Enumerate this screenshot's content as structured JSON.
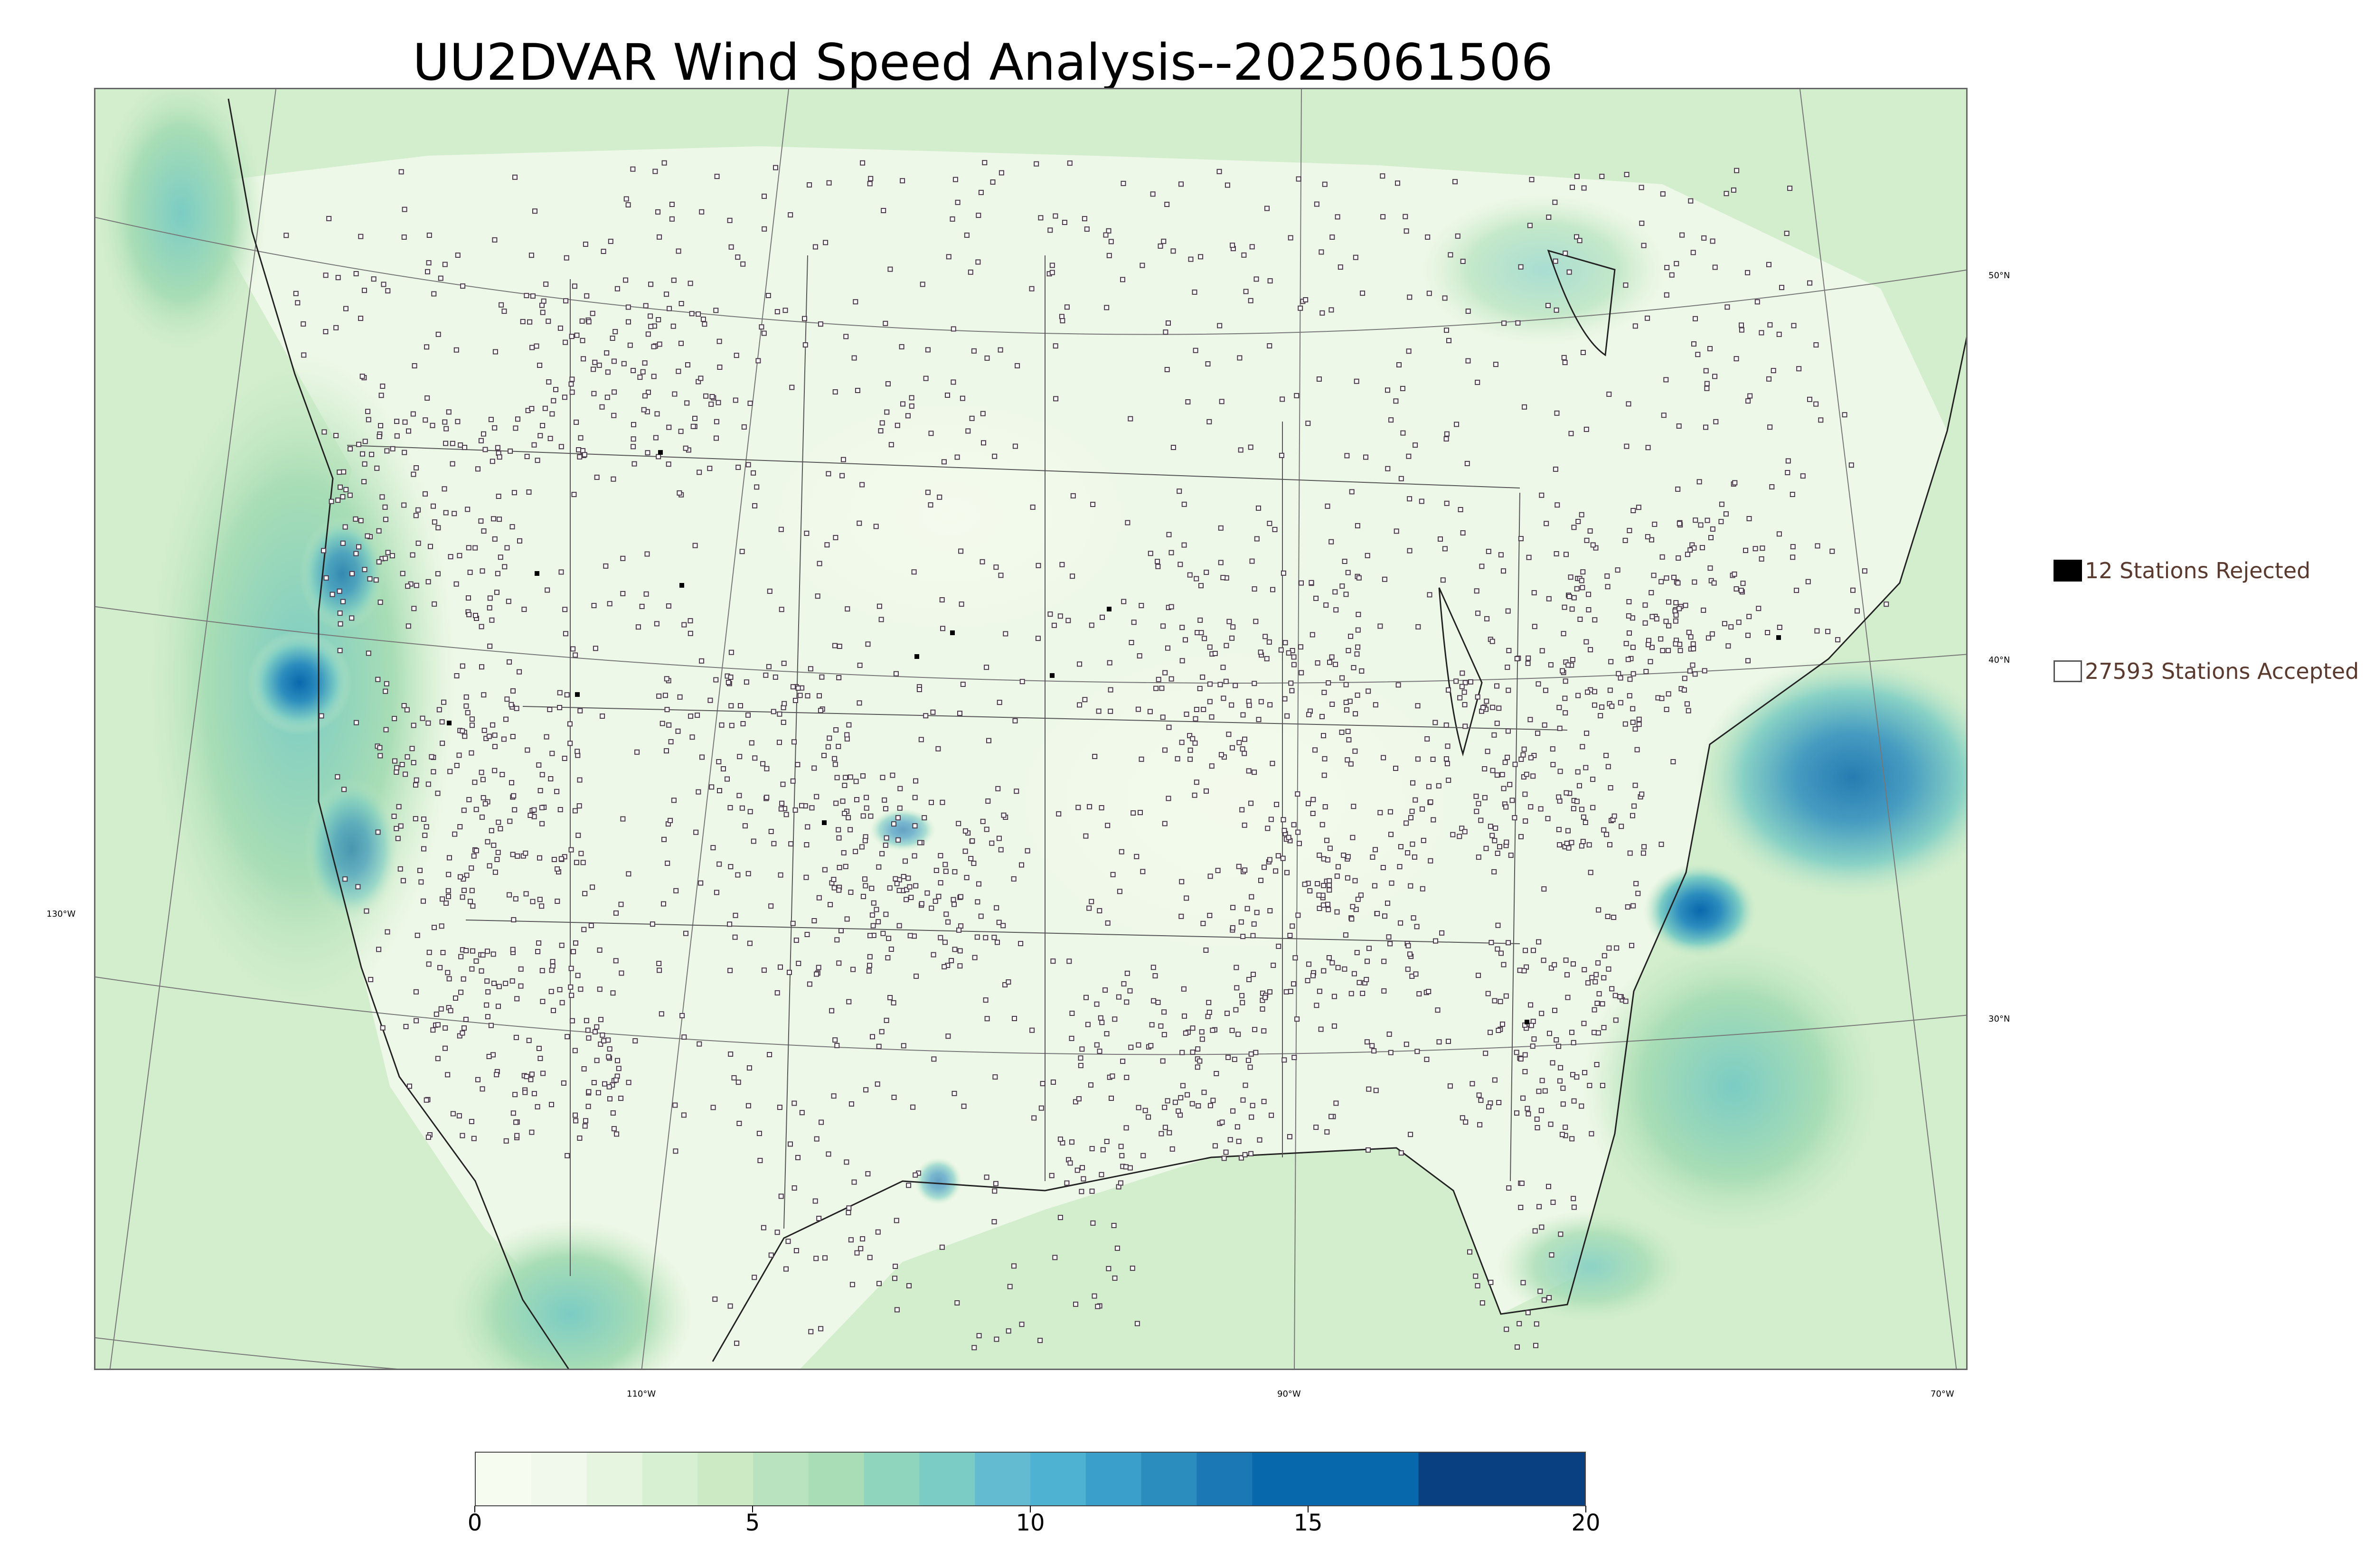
{
  "title": "UU2DVAR Wind Speed Analysis--2025061506",
  "legend": {
    "rejected_label": "12 Stations Rejected",
    "accepted_label": "27593 Stations Accepted",
    "rejected_color": "#000000",
    "accepted_color": "#ffffff"
  },
  "latitude_labels": [
    "50°N",
    "40°N",
    "30°N"
  ],
  "longitude_labels": [
    "130°W",
    "110°W",
    "90°W",
    "70°W"
  ],
  "colorbar": {
    "ticks": [
      "0",
      "5",
      "10",
      "15",
      "20"
    ],
    "min": 0,
    "max": 20,
    "colors": [
      "#f7fcf0",
      "#f0f9eb",
      "#e5f5df",
      "#d8f0d2",
      "#ccebc5",
      "#b8e3be",
      "#a8ddb5",
      "#8fd4bd",
      "#7bccc4",
      "#62bbd1",
      "#4eb3d3",
      "#3a9fcb",
      "#2b8cbe",
      "#1c78b5",
      "#0868ac",
      "#084081"
    ],
    "bounds": [
      0,
      1,
      2,
      3,
      4,
      5,
      6,
      7,
      8,
      9,
      10,
      11,
      12,
      13,
      14,
      17,
      20
    ]
  }
}
